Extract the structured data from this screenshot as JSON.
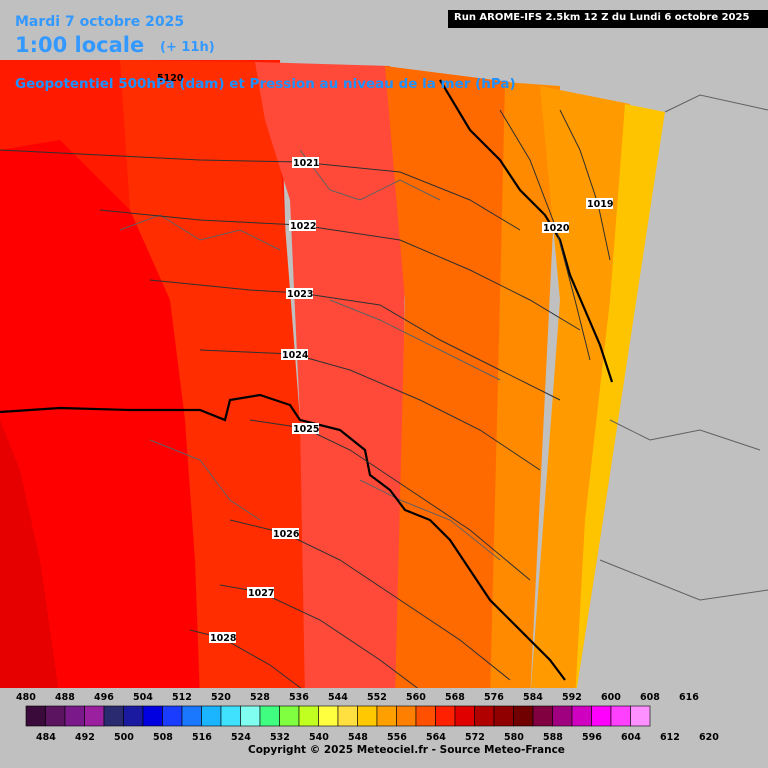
{
  "header": {
    "date": "Mardi 7 octobre 2025",
    "time": "1:00 locale",
    "lead": "(+ 11h)",
    "field": "Geopotentiel 500hPa (dam) et Pression au niveau de la mer (hPa)",
    "run": "Run AROME-IFS 2.5km 12 Z du Lundi 6 octobre 2025"
  },
  "geopotential_label": "5120",
  "isobars": [
    {
      "label": "1021"
    },
    {
      "label": "1022"
    },
    {
      "label": "1023"
    },
    {
      "label": "1024"
    },
    {
      "label": "1025"
    },
    {
      "label": "1026"
    },
    {
      "label": "1027"
    },
    {
      "label": "1028"
    },
    {
      "label": "1020"
    },
    {
      "label": "1019"
    }
  ],
  "color_scale": {
    "top_labels": [
      "480",
      "488",
      "496",
      "504",
      "512",
      "520",
      "528",
      "536",
      "544",
      "552",
      "560",
      "568",
      "576",
      "584",
      "592",
      "600",
      "608",
      "616"
    ],
    "bottom_labels": [
      "484",
      "492",
      "500",
      "508",
      "516",
      "524",
      "532",
      "540",
      "548",
      "556",
      "564",
      "572",
      "580",
      "588",
      "596",
      "604",
      "612",
      "620"
    ],
    "colors": [
      "#3a0a3a",
      "#5a1460",
      "#7a1a8a",
      "#9a20a0",
      "#2a2a70",
      "#1a1aa0",
      "#0000e0",
      "#1a3cff",
      "#1a78ff",
      "#1ab4ff",
      "#40e0ff",
      "#80fff0",
      "#40ff80",
      "#80ff40",
      "#c0ff20",
      "#ffff40",
      "#ffe040",
      "#ffc800",
      "#ffa000",
      "#ff8000",
      "#ff5000",
      "#ff2000",
      "#e00000",
      "#b00000",
      "#900000",
      "#700000",
      "#800040",
      "#a00080",
      "#d000c0",
      "#ff00ff",
      "#ff40ff",
      "#ff90ff"
    ]
  },
  "colors": {
    "band_584": "#ff0000",
    "band_580": "#ff2a00",
    "band_576": "#ff5040",
    "band_572": "#ff7000",
    "band_568": "#ff9000",
    "band_564": "#ffa500",
    "band_560": "#ffc800",
    "band_588": "#e80000",
    "outside": "#c0c0c0",
    "header_text": "#3399ff"
  },
  "copyright": "Copyright © 2025 Meteociel.fr - Source Meteo-France"
}
